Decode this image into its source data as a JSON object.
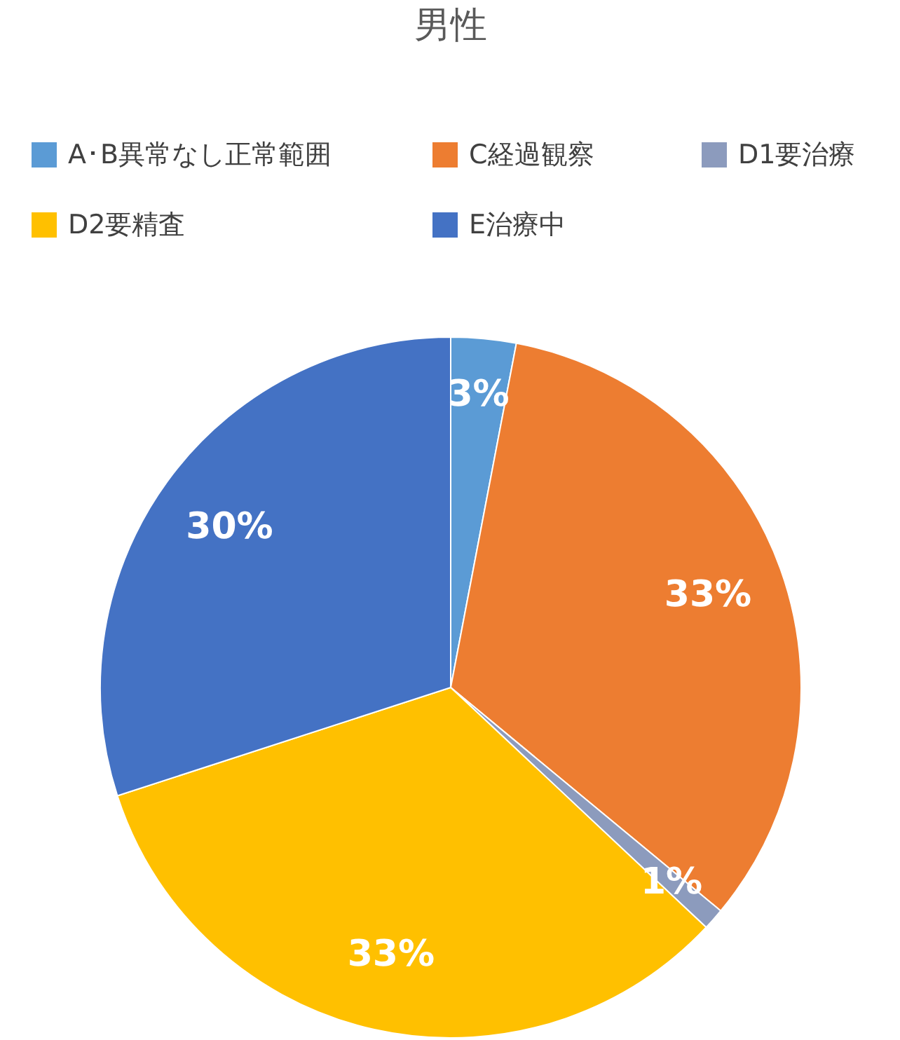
{
  "chart_data": {
    "type": "pie",
    "title": "男性",
    "categories": [
      "A･B異常なし正常範囲",
      "C経過観察",
      "D1要治療",
      "D2要精査",
      "E治療中"
    ],
    "values": [
      3,
      33,
      1,
      33,
      30
    ],
    "colors": [
      "#5b9bd5",
      "#ed7d31",
      "#8c9bbd",
      "#ffc000",
      "#4472c4"
    ],
    "value_labels": [
      "3%",
      "33%",
      "1%",
      "33%",
      "30%"
    ],
    "legend": "top"
  }
}
